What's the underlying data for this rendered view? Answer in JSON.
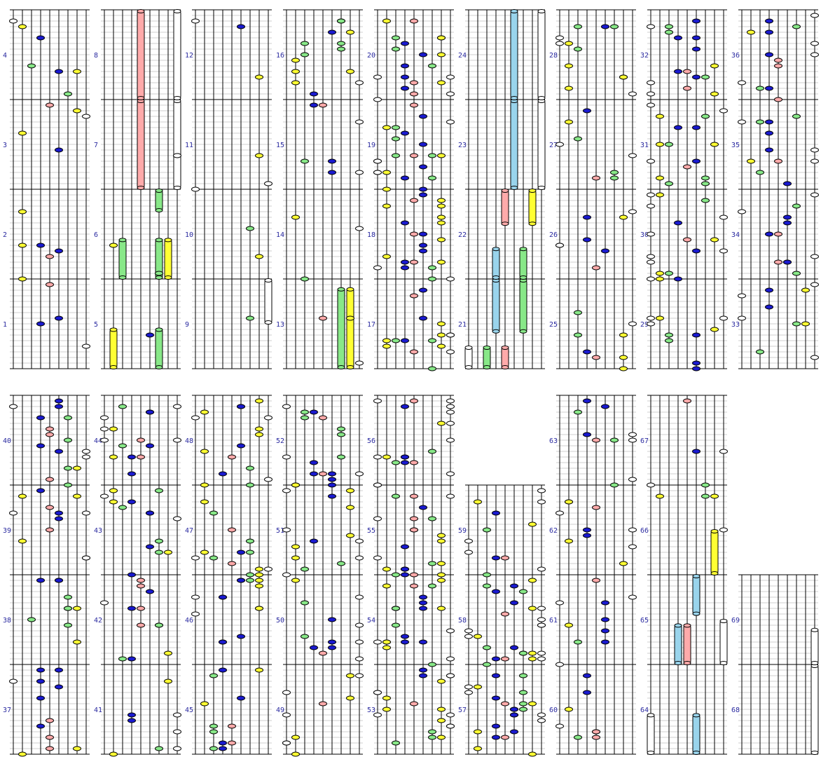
{
  "score": {
    "measure_numbers": [
      "1",
      "2",
      "3",
      "4",
      "5",
      "6",
      "7",
      "8",
      "9",
      "10",
      "11",
      "12",
      "13",
      "14",
      "15",
      "16",
      "17",
      "18",
      "19",
      "20",
      "21",
      "22",
      "23",
      "24",
      "25",
      "26",
      "27",
      "28",
      "29",
      "30",
      "31",
      "32",
      "33",
      "34",
      "35",
      "36",
      "37",
      "38",
      "39",
      "40",
      "41",
      "42",
      "43",
      "44",
      "45",
      "46",
      "47",
      "48",
      "49",
      "50",
      "51",
      "52",
      "53",
      "54",
      "55",
      "56",
      "57",
      "58",
      "59",
      "60",
      "61",
      "62",
      "63",
      "64",
      "65",
      "66",
      "67",
      "68",
      "69"
    ],
    "colors": {
      "background": "#ffffff",
      "string_line": "#000000",
      "beat_line": "#000000",
      "sub_beat_line": "#cfcfcf",
      "number_text": "#2a2aa0",
      "note_white": "#ffffff",
      "note_yellow": "#ffff33",
      "note_green": "#88e888",
      "note_blue": "#1a1ad0",
      "note_pink": "#ffaaaa",
      "note_lightblue": "#99d4ec",
      "note_outline": "#000000"
    },
    "lanes": [
      {
        "name": "lane-1",
        "note_color": "white"
      },
      {
        "name": "lane-2",
        "note_color": "yellow"
      },
      {
        "name": "lane-3",
        "note_color": "green"
      },
      {
        "name": "lane-4",
        "note_color": "blue"
      },
      {
        "name": "lane-5",
        "note_color": "pink"
      },
      {
        "name": "lane-6",
        "note_color": "blue"
      },
      {
        "name": "lane-7",
        "note_color": "green"
      },
      {
        "name": "lane-8",
        "note_color": "yellow"
      },
      {
        "name": "lane-9",
        "note_color": "white"
      }
    ]
  }
}
